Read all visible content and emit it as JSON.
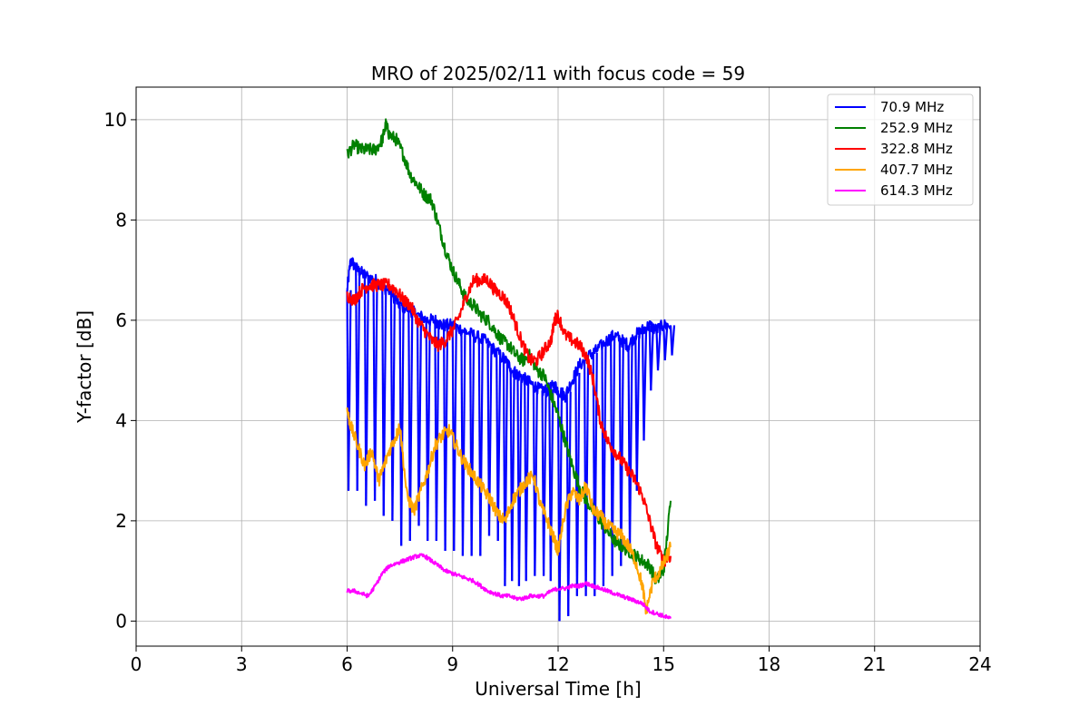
{
  "chart_data": {
    "type": "line",
    "title": "MRO of 2025/02/11 with focus code = 59",
    "xlabel": "Universal Time [h]",
    "ylabel": "Y-factor [dB]",
    "xlim": [
      0,
      24
    ],
    "ylim": [
      -0.5,
      10.65
    ],
    "xticks": [
      0,
      3,
      6,
      9,
      12,
      15,
      18,
      21,
      24
    ],
    "yticks": [
      0,
      2,
      4,
      6,
      8,
      10
    ],
    "grid": true,
    "legend_position": "top-right",
    "series": [
      {
        "name": " 70.9 MHz",
        "color": "#0000ff",
        "x": [
          6.0,
          6.1,
          6.3,
          6.5,
          6.8,
          7.0,
          7.3,
          7.5,
          7.8,
          8.0,
          8.3,
          8.5,
          8.7,
          9.0,
          9.3,
          9.6,
          9.9,
          10.2,
          10.5,
          10.7,
          10.9,
          11.1,
          11.3,
          11.5,
          11.7,
          11.9,
          12.0,
          12.2,
          12.4,
          12.6,
          12.9,
          13.1,
          13.4,
          13.6,
          13.8,
          14.0,
          14.2,
          14.4,
          14.6,
          14.8,
          15.0,
          15.2
        ],
        "y": [
          6.6,
          7.2,
          7.0,
          6.9,
          6.8,
          6.7,
          6.5,
          6.3,
          6.2,
          6.1,
          6.0,
          6.0,
          5.9,
          5.9,
          5.8,
          5.7,
          5.6,
          5.4,
          5.2,
          5.0,
          4.9,
          4.8,
          4.7,
          4.6,
          4.6,
          4.7,
          4.6,
          4.5,
          4.8,
          5.1,
          5.3,
          5.4,
          5.6,
          5.7,
          5.6,
          5.5,
          5.7,
          5.8,
          5.9,
          5.8,
          5.9,
          5.9
        ],
        "dips": [
          [
            6.0,
            2.6
          ],
          [
            6.25,
            2.6
          ],
          [
            6.5,
            2.3
          ],
          [
            6.75,
            2.4
          ],
          [
            7.0,
            2.1
          ],
          [
            7.25,
            2.0
          ],
          [
            7.5,
            1.5
          ],
          [
            7.75,
            1.6
          ],
          [
            8.0,
            1.9
          ],
          [
            8.25,
            1.6
          ],
          [
            8.5,
            1.6
          ],
          [
            8.75,
            1.4
          ],
          [
            9.0,
            1.4
          ],
          [
            9.25,
            1.3
          ],
          [
            9.5,
            1.3
          ],
          [
            9.75,
            1.3
          ],
          [
            10.0,
            1.7
          ],
          [
            10.25,
            1.6
          ],
          [
            10.45,
            0.7
          ],
          [
            10.65,
            0.8
          ],
          [
            10.85,
            0.7
          ],
          [
            11.05,
            0.8
          ],
          [
            11.3,
            0.9
          ],
          [
            11.55,
            0.9
          ],
          [
            11.75,
            0.8
          ],
          [
            12.0,
            0.0
          ],
          [
            12.25,
            0.1
          ],
          [
            12.5,
            0.5
          ],
          [
            12.75,
            0.5
          ],
          [
            13.0,
            0.5
          ],
          [
            13.25,
            0.7
          ],
          [
            13.5,
            0.9
          ],
          [
            13.75,
            1.1
          ],
          [
            14.0,
            1.4
          ],
          [
            14.2,
            2.6
          ],
          [
            14.4,
            3.6
          ],
          [
            14.6,
            4.6
          ],
          [
            14.8,
            5.0
          ],
          [
            15.0,
            5.2
          ],
          [
            15.2,
            5.3
          ]
        ]
      },
      {
        "name": "252.9 MHz",
        "color": "#008000",
        "x": [
          6.0,
          6.2,
          6.4,
          6.6,
          6.8,
          7.0,
          7.1,
          7.2,
          7.4,
          7.6,
          7.8,
          8.0,
          8.2,
          8.4,
          8.6,
          8.8,
          9.0,
          9.2,
          9.4,
          9.6,
          9.8,
          10.0,
          10.2,
          10.4,
          10.6,
          10.8,
          11.0,
          11.2,
          11.4,
          11.6,
          11.8,
          12.0,
          12.2,
          12.4,
          12.6,
          12.8,
          13.0,
          13.2,
          13.4,
          13.6,
          13.8,
          14.0,
          14.2,
          14.4,
          14.6,
          14.8,
          15.0,
          15.2
        ],
        "y": [
          9.3,
          9.5,
          9.4,
          9.4,
          9.4,
          9.6,
          9.9,
          9.7,
          9.6,
          9.3,
          8.9,
          8.7,
          8.5,
          8.4,
          7.9,
          7.4,
          7.0,
          6.7,
          6.4,
          6.3,
          6.1,
          6.0,
          5.8,
          5.6,
          5.5,
          5.3,
          5.2,
          5.3,
          5.0,
          4.9,
          4.5,
          4.1,
          3.6,
          3.1,
          2.7,
          2.4,
          2.2,
          2.0,
          1.8,
          1.6,
          1.5,
          1.4,
          1.3,
          1.2,
          1.1,
          0.8,
          1.0,
          2.4
        ]
      },
      {
        "name": "322.8 MHz",
        "color": "#ff0000",
        "x": [
          6.0,
          6.2,
          6.4,
          6.6,
          6.8,
          7.0,
          7.2,
          7.4,
          7.6,
          7.8,
          8.0,
          8.2,
          8.4,
          8.6,
          8.8,
          9.0,
          9.2,
          9.4,
          9.6,
          9.8,
          10.0,
          10.2,
          10.4,
          10.6,
          10.8,
          11.0,
          11.2,
          11.4,
          11.6,
          11.8,
          11.9,
          12.0,
          12.2,
          12.4,
          12.6,
          12.8,
          13.0,
          13.2,
          13.4,
          13.6,
          13.8,
          14.0,
          14.2,
          14.4,
          14.6,
          14.8,
          15.0,
          15.2
        ],
        "y": [
          6.5,
          6.4,
          6.6,
          6.7,
          6.7,
          6.7,
          6.7,
          6.6,
          6.4,
          6.3,
          6.0,
          5.8,
          5.6,
          5.5,
          5.6,
          5.8,
          6.1,
          6.5,
          6.8,
          6.8,
          6.8,
          6.6,
          6.5,
          6.3,
          5.9,
          5.5,
          5.2,
          5.2,
          5.4,
          5.6,
          6.0,
          6.1,
          5.7,
          5.6,
          5.5,
          5.3,
          4.8,
          4.0,
          3.6,
          3.4,
          3.2,
          3.0,
          2.8,
          2.5,
          2.0,
          1.5,
          1.2,
          1.3
        ]
      },
      {
        "name": "407.7 MHz",
        "color": "#ffa500",
        "x": [
          6.0,
          6.1,
          6.3,
          6.5,
          6.7,
          6.9,
          7.0,
          7.2,
          7.4,
          7.5,
          7.7,
          7.9,
          8.1,
          8.3,
          8.5,
          8.7,
          8.9,
          9.1,
          9.3,
          9.5,
          9.7,
          9.9,
          10.1,
          10.3,
          10.5,
          10.7,
          10.9,
          11.1,
          11.3,
          11.5,
          11.7,
          11.9,
          12.0,
          12.2,
          12.4,
          12.6,
          12.8,
          13.0,
          13.2,
          13.4,
          13.6,
          13.8,
          14.0,
          14.2,
          14.4,
          14.5,
          14.7,
          14.9,
          15.1,
          15.2
        ],
        "y": [
          4.2,
          3.9,
          3.5,
          3.1,
          3.4,
          2.8,
          3.0,
          3.4,
          3.7,
          3.9,
          2.5,
          2.2,
          2.6,
          3.0,
          3.5,
          3.7,
          3.8,
          3.5,
          3.2,
          3.0,
          2.8,
          2.6,
          2.4,
          2.1,
          2.0,
          2.4,
          2.6,
          2.8,
          2.9,
          2.3,
          2.0,
          1.6,
          1.4,
          2.2,
          2.6,
          2.4,
          2.7,
          2.2,
          2.1,
          1.9,
          1.8,
          1.7,
          1.5,
          1.2,
          0.7,
          0.2,
          0.8,
          1.0,
          1.3,
          1.5
        ]
      },
      {
        "name": "614.3 MHz",
        "color": "#ff00ff",
        "x": [
          6.0,
          6.2,
          6.4,
          6.6,
          6.8,
          7.0,
          7.2,
          7.4,
          7.6,
          7.8,
          8.0,
          8.2,
          8.4,
          8.6,
          8.8,
          9.0,
          9.2,
          9.4,
          9.6,
          9.8,
          10.0,
          10.2,
          10.4,
          10.6,
          10.8,
          11.0,
          11.2,
          11.4,
          11.6,
          11.8,
          12.0,
          12.2,
          12.4,
          12.6,
          12.8,
          13.0,
          13.2,
          13.4,
          13.6,
          13.8,
          14.0,
          14.2,
          14.4,
          14.6,
          14.8,
          15.0,
          15.2
        ],
        "y": [
          0.6,
          0.6,
          0.55,
          0.5,
          0.7,
          0.95,
          1.1,
          1.15,
          1.2,
          1.25,
          1.3,
          1.3,
          1.2,
          1.1,
          1.0,
          0.95,
          0.9,
          0.85,
          0.8,
          0.7,
          0.6,
          0.55,
          0.5,
          0.5,
          0.45,
          0.45,
          0.5,
          0.5,
          0.5,
          0.6,
          0.65,
          0.65,
          0.7,
          0.7,
          0.75,
          0.7,
          0.65,
          0.6,
          0.55,
          0.5,
          0.45,
          0.4,
          0.35,
          0.2,
          0.15,
          0.1,
          0.05
        ]
      }
    ]
  }
}
